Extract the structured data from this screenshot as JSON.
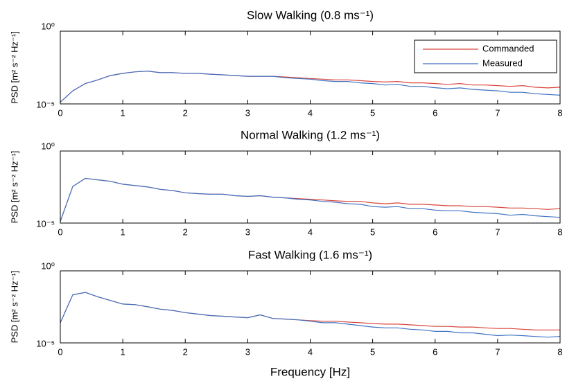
{
  "chart_data": [
    {
      "type": "line",
      "title": "Slow Walking (0.8 ms⁻¹)",
      "y_label": "PSD [m² s⁻² Hz⁻¹]",
      "log_y": true,
      "legend": "upper right",
      "x": [
        0,
        0.2,
        0.4,
        0.6,
        0.8,
        1,
        1.2,
        1.4,
        1.6,
        1.8,
        2,
        2.2,
        2.4,
        2.6,
        2.8,
        3,
        3.2,
        3.4,
        3.6,
        3.8,
        4,
        4.2,
        4.4,
        4.6,
        4.8,
        5,
        5.2,
        5.4,
        5.6,
        5.8,
        6,
        6.2,
        6.4,
        6.6,
        6.8,
        7,
        7.2,
        7.4,
        7.6,
        7.8,
        8
      ],
      "xlim": [
        0,
        8
      ],
      "xticks": [
        0,
        1,
        2,
        3,
        4,
        5,
        6,
        7,
        8
      ],
      "ylim": [
        1e-05,
        1
      ],
      "yticks": [
        {
          "value": 1,
          "label": "10⁰"
        },
        {
          "value": 1e-05,
          "label": "10⁻⁵"
        }
      ],
      "series": [
        {
          "name": "Commanded",
          "color": "#d9443c",
          "values": [
            1.3e-05,
            7.9e-05,
            0.00025,
            0.00045,
            0.00089,
            0.00126,
            0.0016,
            0.0018,
            0.0014,
            0.0014,
            0.00126,
            0.00126,
            0.0011,
            0.001,
            0.00089,
            0.00079,
            0.00079,
            0.00079,
            0.00071,
            0.00063,
            0.00056,
            0.0005,
            0.00045,
            0.00045,
            0.0004,
            0.00035,
            0.00032,
            0.00035,
            0.00028,
            0.00028,
            0.00025,
            0.00022,
            0.00025,
            0.0002,
            0.0002,
            0.00018,
            0.00016,
            0.00018,
            0.00014,
            0.000126,
            0.00014
          ]
        },
        {
          "name": "Measured",
          "color": "#3f72c2",
          "values": [
            1.3e-05,
            7.9e-05,
            0.00025,
            0.00045,
            0.00089,
            0.00126,
            0.0016,
            0.0018,
            0.0014,
            0.0014,
            0.00126,
            0.00126,
            0.0011,
            0.001,
            0.00089,
            0.00079,
            0.00079,
            0.00079,
            0.00063,
            0.00056,
            0.0005,
            0.0004,
            0.00035,
            0.00035,
            0.00028,
            0.00025,
            0.0002,
            0.00022,
            0.00016,
            0.00016,
            0.00013,
            0.00011,
            0.000126,
            0.0001,
            8.9e-05,
            7.9e-05,
            6.3e-05,
            6.3e-05,
            5e-05,
            4.5e-05,
            4e-05
          ]
        }
      ]
    },
    {
      "type": "line",
      "title": "Normal Walking (1.2 ms⁻¹)",
      "y_label": "PSD [m² s⁻² Hz⁻¹]",
      "log_y": true,
      "x": [
        0,
        0.2,
        0.4,
        0.6,
        0.8,
        1,
        1.2,
        1.4,
        1.6,
        1.8,
        2,
        2.2,
        2.4,
        2.6,
        2.8,
        3,
        3.2,
        3.4,
        3.6,
        3.8,
        4,
        4.2,
        4.4,
        4.6,
        4.8,
        5,
        5.2,
        5.4,
        5.6,
        5.8,
        6,
        6.2,
        6.4,
        6.6,
        6.8,
        7,
        7.2,
        7.4,
        7.6,
        7.8,
        8
      ],
      "xlim": [
        0,
        8
      ],
      "xticks": [
        0,
        1,
        2,
        3,
        4,
        5,
        6,
        7,
        8
      ],
      "ylim": [
        1e-05,
        1
      ],
      "yticks": [
        {
          "value": 1,
          "label": "10⁰"
        },
        {
          "value": 1e-05,
          "label": "10⁻⁵"
        }
      ],
      "series": [
        {
          "color": "#d9443c",
          "values": [
            1.3e-05,
            0.0035,
            0.0126,
            0.01,
            0.0079,
            0.005,
            0.004,
            0.0032,
            0.0022,
            0.0018,
            0.00126,
            0.0011,
            0.001,
            0.001,
            0.00079,
            0.00071,
            0.00079,
            0.00063,
            0.00056,
            0.0005,
            0.00045,
            0.0004,
            0.00035,
            0.00032,
            0.00032,
            0.00025,
            0.00022,
            0.00025,
            0.0002,
            0.0002,
            0.00018,
            0.00016,
            0.00016,
            0.00014,
            0.00014,
            0.000126,
            0.00011,
            0.00011,
            0.0001,
            8.9e-05,
            0.0001
          ]
        },
        {
          "color": "#3f72c2",
          "values": [
            1.3e-05,
            0.0035,
            0.0126,
            0.01,
            0.0079,
            0.005,
            0.004,
            0.0032,
            0.0022,
            0.0018,
            0.00126,
            0.0011,
            0.001,
            0.001,
            0.00079,
            0.00071,
            0.00079,
            0.00063,
            0.00056,
            0.00045,
            0.0004,
            0.00032,
            0.00028,
            0.00022,
            0.0002,
            0.00014,
            0.000126,
            0.00014,
            0.0001,
            0.0001,
            7.9e-05,
            7.1e-05,
            7.1e-05,
            5.6e-05,
            5e-05,
            4.5e-05,
            3.5e-05,
            4e-05,
            3.2e-05,
            2.8e-05,
            2.5e-05
          ]
        }
      ]
    },
    {
      "type": "line",
      "title": "Fast Walking (1.6 ms⁻¹)",
      "y_label": "PSD [m² s⁻² Hz⁻¹]",
      "x_label": "Frequency [Hz]",
      "log_y": true,
      "x": [
        0,
        0.2,
        0.4,
        0.6,
        0.8,
        1,
        1.2,
        1.4,
        1.6,
        1.8,
        2,
        2.2,
        2.4,
        2.6,
        2.8,
        3,
        3.2,
        3.4,
        3.6,
        3.8,
        4,
        4.2,
        4.4,
        4.6,
        4.8,
        5,
        5.2,
        5.4,
        5.6,
        5.8,
        6,
        6.2,
        6.4,
        6.6,
        6.8,
        7,
        7.2,
        7.4,
        7.6,
        7.8,
        8
      ],
      "xlim": [
        0,
        8
      ],
      "xticks": [
        0,
        1,
        2,
        3,
        4,
        5,
        6,
        7,
        8
      ],
      "ylim": [
        1e-05,
        1
      ],
      "yticks": [
        {
          "value": 1,
          "label": "10⁰"
        },
        {
          "value": 1e-05,
          "label": "10⁻⁵"
        }
      ],
      "series": [
        {
          "color": "#d9443c",
          "values": [
            0.00025,
            0.022,
            0.032,
            0.016,
            0.0089,
            0.005,
            0.0045,
            0.0032,
            0.0022,
            0.0018,
            0.00126,
            0.001,
            0.00079,
            0.00071,
            0.00063,
            0.00056,
            0.00089,
            0.0005,
            0.00045,
            0.0004,
            0.00035,
            0.00032,
            0.00032,
            0.00028,
            0.00025,
            0.00022,
            0.0002,
            0.0002,
            0.00018,
            0.00016,
            0.00014,
            0.00014,
            0.000126,
            0.000126,
            0.00011,
            0.0001,
            0.0001,
            8.9e-05,
            7.9e-05,
            7.9e-05,
            7.9e-05
          ]
        },
        {
          "color": "#3f72c2",
          "values": [
            0.00025,
            0.022,
            0.032,
            0.016,
            0.0089,
            0.005,
            0.0045,
            0.0032,
            0.0022,
            0.0018,
            0.00126,
            0.001,
            0.00079,
            0.00071,
            0.00063,
            0.00056,
            0.00089,
            0.0005,
            0.00045,
            0.0004,
            0.00032,
            0.00025,
            0.00025,
            0.0002,
            0.00016,
            0.000126,
            0.00011,
            0.00011,
            8.9e-05,
            7.9e-05,
            6.3e-05,
            6.3e-05,
            5e-05,
            5e-05,
            4e-05,
            3.2e-05,
            3.5e-05,
            3.2e-05,
            2.8e-05,
            2.5e-05,
            2.8e-05
          ]
        }
      ]
    }
  ]
}
